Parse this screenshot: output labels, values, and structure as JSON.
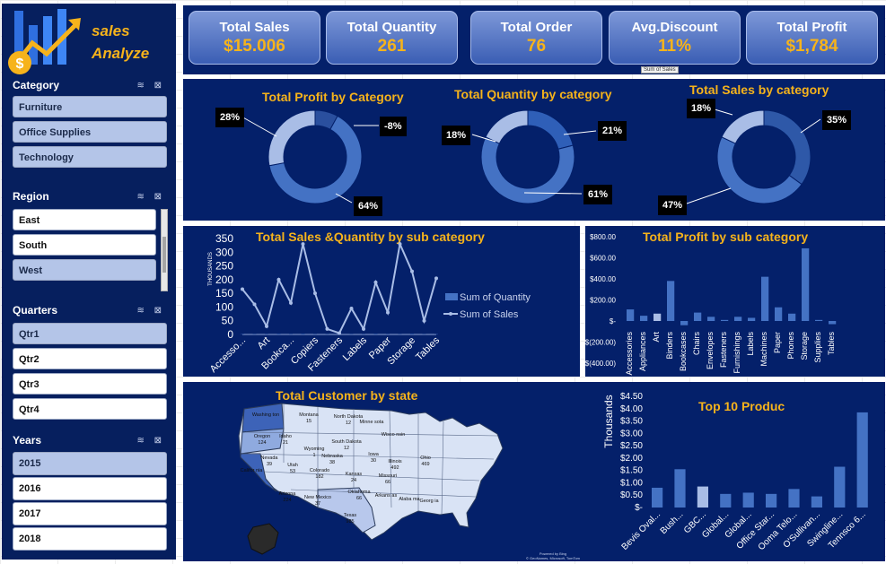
{
  "sidebar": {
    "brand_line1": "sales",
    "brand_line2": "Analyze",
    "category": {
      "title": "Category",
      "items": [
        "Furniture",
        "Office Supplies",
        "Technology"
      ]
    },
    "region": {
      "title": "Region",
      "items": [
        "East",
        "South",
        "West"
      ]
    },
    "quarters": {
      "title": "Quarters",
      "items": [
        "Qtr1",
        "Qtr2",
        "Qtr3",
        "Qtr4"
      ]
    },
    "years": {
      "title": "Years",
      "items": [
        "2015",
        "2016",
        "2017",
        "2018"
      ]
    },
    "slicer_icons": "≋ ⊠"
  },
  "kpis": [
    {
      "label": "Total Sales",
      "value": "$15.006"
    },
    {
      "label": "Total Quantity",
      "value": "261"
    },
    {
      "label": "Total Order",
      "value": "76"
    },
    {
      "label": "Avg.Discount",
      "value": "11%"
    },
    {
      "label": "Total Profit",
      "value": "$1,784"
    }
  ],
  "tooltip": "Sum of Sales",
  "colors": {
    "panel": "#04206a",
    "accent": "#f6b31b",
    "bar": "#4472c4",
    "light": "#a9bde6"
  },
  "donuts": {
    "profit": {
      "title": "Total Profit by Category",
      "labels": [
        "28%",
        "-8%",
        "64%"
      ]
    },
    "quantity": {
      "title": "Total Quantity by category",
      "labels": [
        "18%",
        "21%",
        "61%"
      ]
    },
    "sales": {
      "title": "Total Sales by category",
      "labels": [
        "18%",
        "35%",
        "47%"
      ]
    }
  },
  "chart_data": [
    {
      "type": "pie",
      "title": "Total Profit by Category",
      "categories": [
        "Furniture",
        "Office Supplies",
        "Technology"
      ],
      "values": [
        -8,
        28,
        64
      ]
    },
    {
      "type": "pie",
      "title": "Total Quantity by category",
      "categories": [
        "Furniture",
        "Office Supplies",
        "Technology"
      ],
      "values": [
        21,
        18,
        61
      ]
    },
    {
      "type": "pie",
      "title": "Total Sales by category",
      "categories": [
        "Furniture",
        "Office Supplies",
        "Technology"
      ],
      "values": [
        35,
        18,
        47
      ]
    },
    {
      "type": "line",
      "title": "Total Sales &Quantity by sub category",
      "ylabel": "THOUSANDS",
      "ylim": [
        0,
        350
      ],
      "yticks": [
        "350",
        "300",
        "250",
        "200",
        "150",
        "100",
        "50",
        "0"
      ],
      "categories": [
        "Accessories",
        "Appliances",
        "Art",
        "Binders",
        "Bookcases",
        "Chairs",
        "Copiers",
        "Envelopes",
        "Fasteners",
        "Furnishings",
        "Labels",
        "Machines",
        "Paper",
        "Phones",
        "Storage",
        "Supplies",
        "Tables"
      ],
      "tick_labels": [
        "Accesso...",
        "Art",
        "Bookca...",
        "Copiers",
        "Fasteners",
        "Labels",
        "Paper",
        "Storage",
        "Tables"
      ],
      "series": [
        {
          "name": "Sum of Quantity",
          "type": "bar",
          "values": [
            1,
            1,
            1,
            2,
            1,
            2,
            1,
            1,
            1,
            1,
            1,
            2,
            1,
            1,
            2,
            1,
            1
          ]
        },
        {
          "name": "Sum of Sales",
          "type": "line",
          "values": [
            165,
            110,
            30,
            200,
            115,
            330,
            150,
            20,
            5,
            95,
            20,
            190,
            80,
            330,
            230,
            50,
            205
          ]
        }
      ]
    },
    {
      "type": "bar",
      "title": "Total Profit by sub category",
      "ylim": [
        -400,
        800
      ],
      "yticks": [
        "$800.00",
        "$600.00",
        "$400.00",
        "$200.00",
        "$-",
        "$(200.00)",
        "$(400.00)"
      ],
      "categories": [
        "Accessories",
        "Appliances",
        "Art",
        "Binders",
        "Bookcases",
        "Chairs",
        "Envelopes",
        "Fasteners",
        "Furnishings",
        "Labels",
        "Machines",
        "Paper",
        "Phones",
        "Storage",
        "Supplies",
        "Tables"
      ],
      "values": [
        110,
        50,
        70,
        380,
        -40,
        80,
        40,
        10,
        40,
        30,
        420,
        130,
        70,
        690,
        10,
        -30
      ]
    },
    {
      "type": "bar",
      "title": "Top 10 Produc",
      "ylabel": "Thousands",
      "ylim": [
        0,
        4.5
      ],
      "yticks": [
        "$4.50",
        "$4.00",
        "$3.50",
        "$3.00",
        "$2.50",
        "$2.00",
        "$1.50",
        "$1.00",
        "$0.50",
        "$-"
      ],
      "categories": [
        "Bevis Oval...",
        "Bush...",
        "GBC...",
        "Global...",
        "Global...",
        "Office Star...",
        "Ooma Telo...",
        "O'Sullivan...",
        "Swingline...",
        "Tennsco 6..."
      ],
      "values": [
        0.8,
        1.55,
        0.85,
        0.55,
        0.6,
        0.55,
        0.75,
        0.45,
        1.65,
        3.85
      ]
    }
  ],
  "map": {
    "title": "Total Customer by state",
    "states": [
      {
        "name": "Washing ton",
        "value": ""
      },
      {
        "name": "Montana",
        "value": "15"
      },
      {
        "name": "North Dakota",
        "value": "12"
      },
      {
        "name": "Minne sota",
        "value": ""
      },
      {
        "name": "Oregon",
        "value": "124"
      },
      {
        "name": "Idaho",
        "value": "21"
      },
      {
        "name": "South Dakota",
        "value": "12"
      },
      {
        "name": "Wisco nsin",
        "value": ""
      },
      {
        "name": "Wyoming",
        "value": "1"
      },
      {
        "name": "Nevada",
        "value": "39"
      },
      {
        "name": "Utah",
        "value": "53"
      },
      {
        "name": "Nebraska",
        "value": "38"
      },
      {
        "name": "Iowa",
        "value": "30"
      },
      {
        "name": "Illinois",
        "value": "492"
      },
      {
        "name": "Ohio",
        "value": "469"
      },
      {
        "name": "Colorado",
        "value": "182"
      },
      {
        "name": "Kansas",
        "value": "24"
      },
      {
        "name": "Missouri",
        "value": "66"
      },
      {
        "name": "Califor nia",
        "value": ""
      },
      {
        "name": "Arizona",
        "value": "224"
      },
      {
        "name": "New Mexico",
        "value": "37"
      },
      {
        "name": "Oklahoma",
        "value": "66"
      },
      {
        "name": "Arkans as",
        "value": ""
      },
      {
        "name": "Texas",
        "value": "985"
      },
      {
        "name": "Alaba ma",
        "value": ""
      },
      {
        "name": "Georg ia",
        "value": ""
      }
    ],
    "attribution": "Powered by Bing\n© GeoNames, Microsoft, TomTom"
  }
}
